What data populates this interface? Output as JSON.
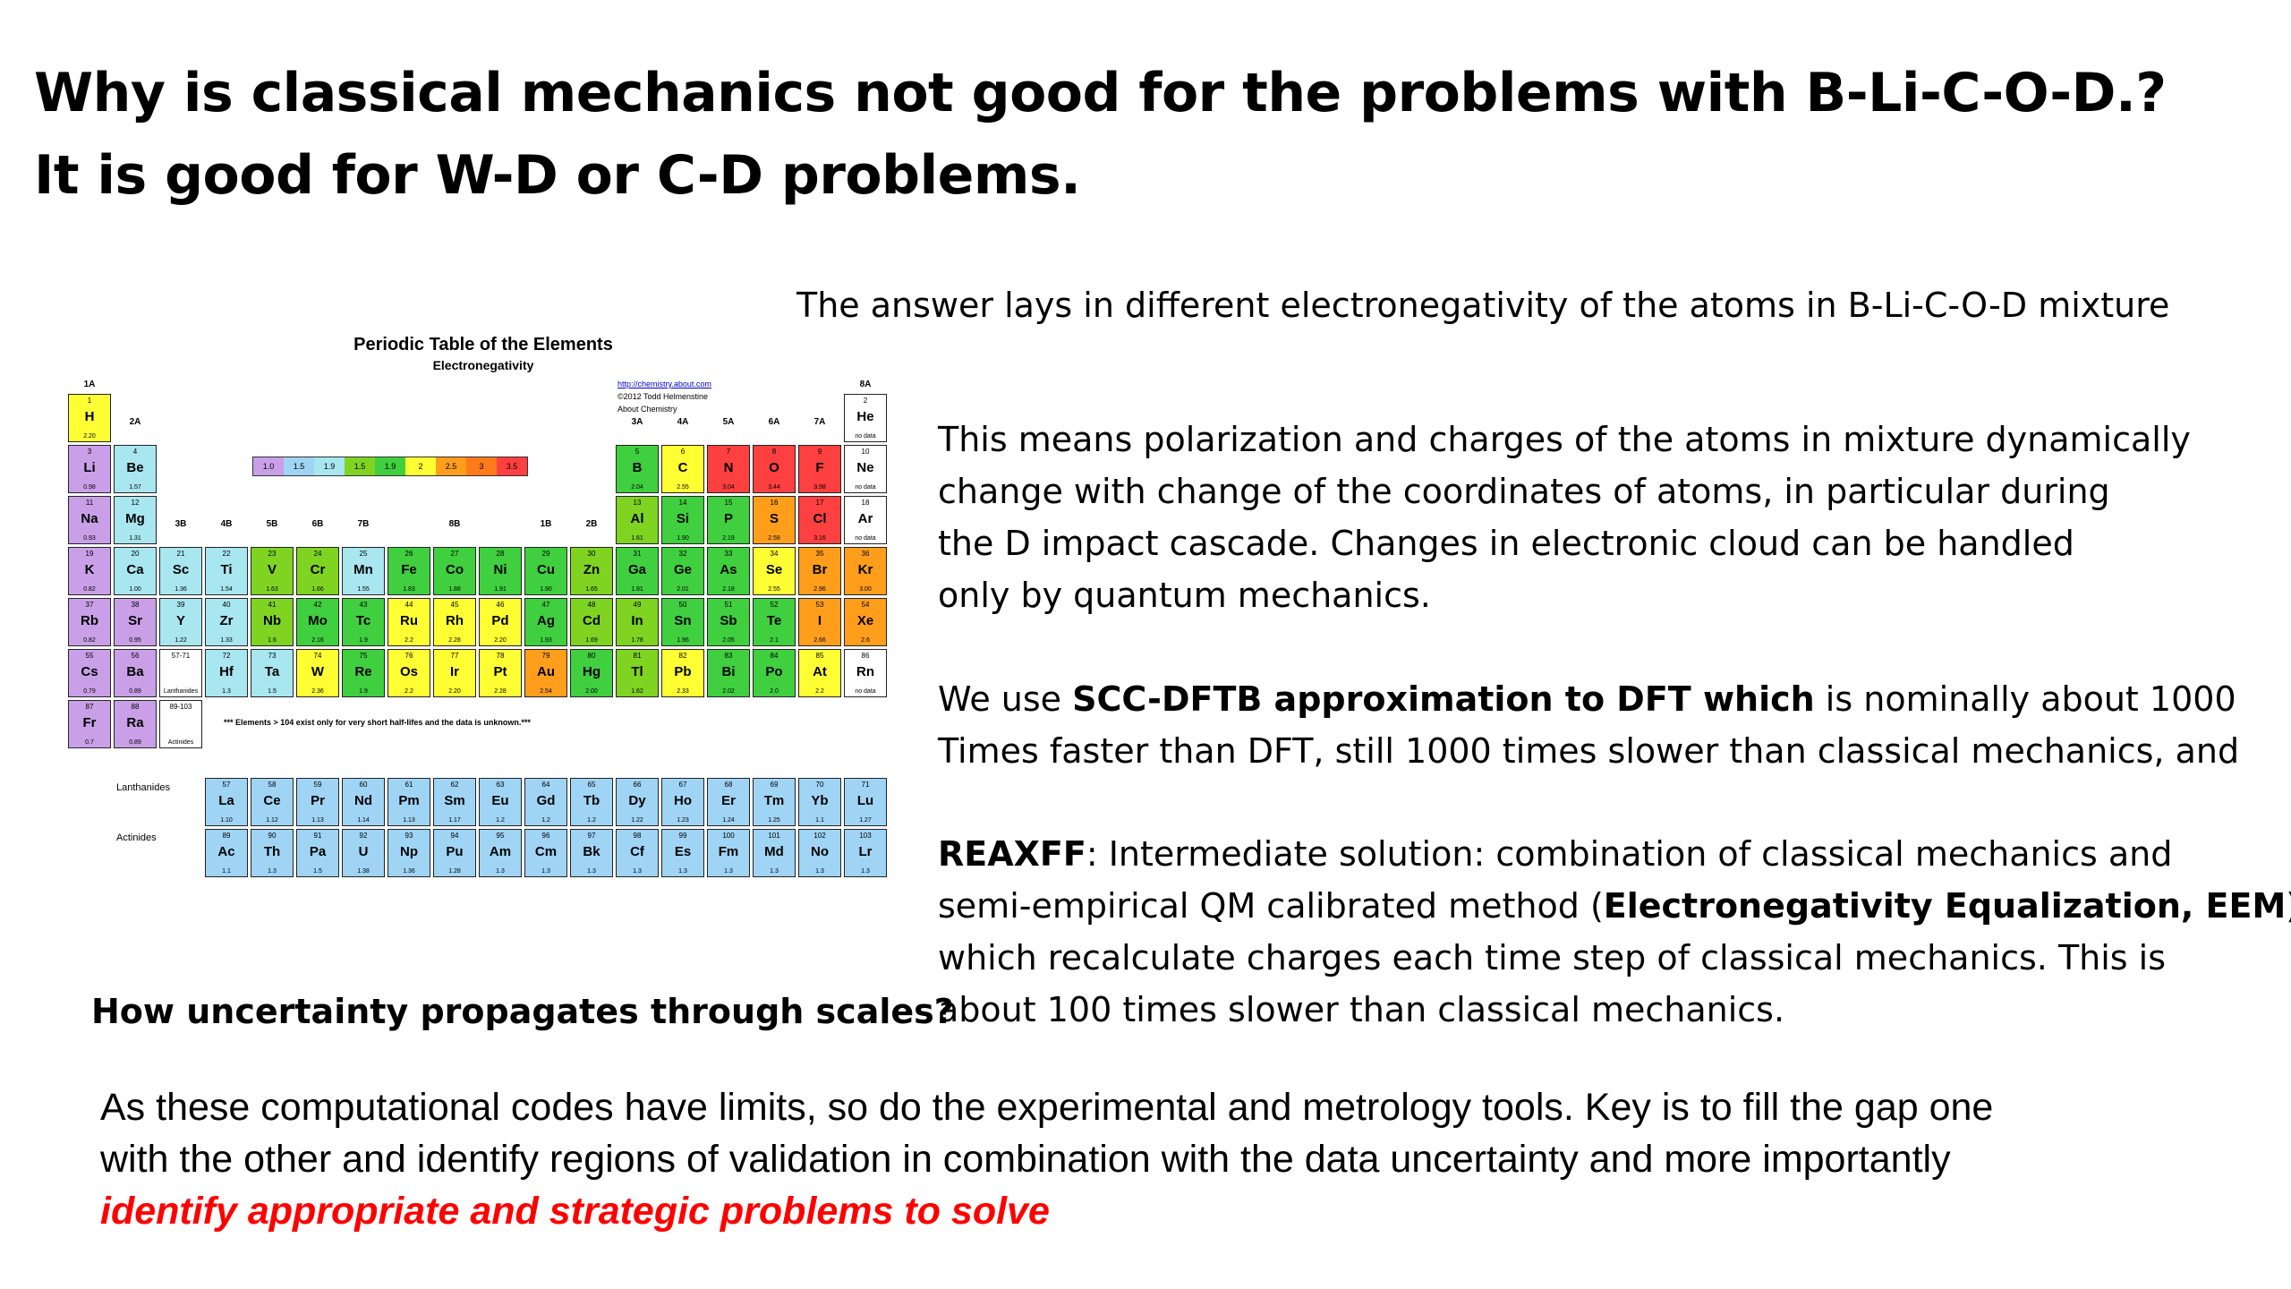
{
  "title": {
    "line1": "Why is classical mechanics not good for the problems  with B-Li-C-O-D.?",
    "line2": "It is good for W-D or C-D problems."
  },
  "answer": "The answer lays in different electronegativity of the atoms in B-Li-C-O-D mixture",
  "para1": [
    "This means polarization and charges of the atoms in mixture dynamically",
    "change  with change of the coordinates of atoms, in particular  during",
    "the D impact cascade.  Changes in electronic cloud can be handled",
    "only by quantum mechanics."
  ],
  "para2": {
    "l1_pre": "We use ",
    "l1_bold": "SCC-DFTB approximation to DFT which",
    "l1_post": " is nominally about 1000",
    "l2": "Times faster than DFT,  still 1000 times slower than classical mechanics, and"
  },
  "para3": {
    "l1_bold": "REAXFF",
    "l1_rest": ":  Intermediate solution: combination of classical mechanics  and",
    "l2_pre": "semi-empirical QM calibrated method (",
    "l2_bold": "Electronegativity Equalization, EEM",
    "l2_post": ")",
    "l3": "which recalculate charges each time step of classical mechanics. This is",
    "l4": "about  100 times slower than classical mechanics."
  },
  "uncertainty_question": "How uncertainty propagates through scales?",
  "bottom": {
    "l1": "As these computational codes have limits, so do the experimental and metrology tools. Key is to fill the gap one",
    "l2": "with the other and identify regions of validation in combination with the data uncertainty and more importantly",
    "l3_red": "identify appropriate and strategic problems to solve"
  },
  "periodic_table": {
    "title": "Periodic Table of the Elements",
    "subtitle": "Electronegativity",
    "credit": [
      "http://chemistry.about.com",
      "©2012 Todd Helmenstine",
      "About Chemistry"
    ],
    "note": "*** Elements > 104 exist only for very short half-lifes and the data is unknown.***",
    "lanthanides_label": "Lanthanides",
    "actinides_label": "Actinides",
    "group_labels": [
      "1A",
      "2A",
      "3B",
      "4B",
      "5B",
      "6B",
      "7B",
      "8B",
      "1B",
      "2B",
      "3A",
      "4A",
      "5A",
      "6A",
      "7A",
      "8A"
    ],
    "scale": [
      "1.0",
      "1.5",
      "1.9",
      "1.5",
      "1.9",
      "2",
      "2.5",
      "3",
      "3.5"
    ],
    "colors": {
      "purple": "#c9a0e8",
      "blue": "#9fd4f5",
      "cyan": "#a8e6f0",
      "lime": "#7fd321",
      "green": "#3fcf3f",
      "yellow": "#ffff33",
      "orange": "#ff9e1a",
      "red": "#ff4040",
      "white": "#ffffff",
      "ltgray": "#e8e8e8"
    },
    "elements": [
      {
        "n": "1",
        "s": "H",
        "e": "2.20",
        "r": 0,
        "c": 0,
        "col": "yellow"
      },
      {
        "n": "2",
        "s": "He",
        "e": "no data",
        "r": 0,
        "c": 17,
        "col": "white"
      },
      {
        "n": "3",
        "s": "Li",
        "e": "0.98",
        "r": 1,
        "c": 0,
        "col": "purple"
      },
      {
        "n": "4",
        "s": "Be",
        "e": "1.57",
        "r": 1,
        "c": 1,
        "col": "cyan"
      },
      {
        "n": "5",
        "s": "B",
        "e": "2.04",
        "r": 1,
        "c": 12,
        "col": "green"
      },
      {
        "n": "6",
        "s": "C",
        "e": "2.55",
        "r": 1,
        "c": 13,
        "col": "yellow"
      },
      {
        "n": "7",
        "s": "N",
        "e": "3.04",
        "r": 1,
        "c": 14,
        "col": "red"
      },
      {
        "n": "8",
        "s": "O",
        "e": "3.44",
        "r": 1,
        "c": 15,
        "col": "red"
      },
      {
        "n": "9",
        "s": "F",
        "e": "3.98",
        "r": 1,
        "c": 16,
        "col": "red"
      },
      {
        "n": "10",
        "s": "Ne",
        "e": "no data",
        "r": 1,
        "c": 17,
        "col": "white"
      },
      {
        "n": "11",
        "s": "Na",
        "e": "0.93",
        "r": 2,
        "c": 0,
        "col": "purple"
      },
      {
        "n": "12",
        "s": "Mg",
        "e": "1.31",
        "r": 2,
        "c": 1,
        "col": "cyan"
      },
      {
        "n": "13",
        "s": "Al",
        "e": "1.61",
        "r": 2,
        "c": 12,
        "col": "lime"
      },
      {
        "n": "14",
        "s": "Si",
        "e": "1.90",
        "r": 2,
        "c": 13,
        "col": "green"
      },
      {
        "n": "15",
        "s": "P",
        "e": "2.19",
        "r": 2,
        "c": 14,
        "col": "green"
      },
      {
        "n": "16",
        "s": "S",
        "e": "2.58",
        "r": 2,
        "c": 15,
        "col": "orange"
      },
      {
        "n": "17",
        "s": "Cl",
        "e": "3.16",
        "r": 2,
        "c": 16,
        "col": "red"
      },
      {
        "n": "18",
        "s": "Ar",
        "e": "no data",
        "r": 2,
        "c": 17,
        "col": "white"
      },
      {
        "n": "19",
        "s": "K",
        "e": "0.82",
        "r": 3,
        "c": 0,
        "col": "purple"
      },
      {
        "n": "20",
        "s": "Ca",
        "e": "1.00",
        "r": 3,
        "c": 1,
        "col": "cyan"
      },
      {
        "n": "21",
        "s": "Sc",
        "e": "1.36",
        "r": 3,
        "c": 2,
        "col": "cyan"
      },
      {
        "n": "22",
        "s": "Ti",
        "e": "1.54",
        "r": 3,
        "c": 3,
        "col": "cyan"
      },
      {
        "n": "23",
        "s": "V",
        "e": "1.63",
        "r": 3,
        "c": 4,
        "col": "lime"
      },
      {
        "n": "24",
        "s": "Cr",
        "e": "1.66",
        "r": 3,
        "c": 5,
        "col": "lime"
      },
      {
        "n": "25",
        "s": "Mn",
        "e": "1.55",
        "r": 3,
        "c": 6,
        "col": "cyan"
      },
      {
        "n": "26",
        "s": "Fe",
        "e": "1.83",
        "r": 3,
        "c": 7,
        "col": "green"
      },
      {
        "n": "27",
        "s": "Co",
        "e": "1.88",
        "r": 3,
        "c": 8,
        "col": "green"
      },
      {
        "n": "28",
        "s": "Ni",
        "e": "1.91",
        "r": 3,
        "c": 9,
        "col": "green"
      },
      {
        "n": "29",
        "s": "Cu",
        "e": "1.90",
        "r": 3,
        "c": 10,
        "col": "green"
      },
      {
        "n": "30",
        "s": "Zn",
        "e": "1.65",
        "r": 3,
        "c": 11,
        "col": "lime"
      },
      {
        "n": "31",
        "s": "Ga",
        "e": "1.81",
        "r": 3,
        "c": 12,
        "col": "green"
      },
      {
        "n": "32",
        "s": "Ge",
        "e": "2.01",
        "r": 3,
        "c": 13,
        "col": "green"
      },
      {
        "n": "33",
        "s": "As",
        "e": "2.18",
        "r": 3,
        "c": 14,
        "col": "green"
      },
      {
        "n": "34",
        "s": "Se",
        "e": "2.55",
        "r": 3,
        "c": 15,
        "col": "yellow"
      },
      {
        "n": "35",
        "s": "Br",
        "e": "2.96",
        "r": 3,
        "c": 16,
        "col": "orange"
      },
      {
        "n": "36",
        "s": "Kr",
        "e": "3.00",
        "r": 3,
        "c": 17,
        "col": "orange"
      },
      {
        "n": "37",
        "s": "Rb",
        "e": "0.82",
        "r": 4,
        "c": 0,
        "col": "purple"
      },
      {
        "n": "38",
        "s": "Sr",
        "e": "0.95",
        "r": 4,
        "c": 1,
        "col": "purple"
      },
      {
        "n": "39",
        "s": "Y",
        "e": "1.22",
        "r": 4,
        "c": 2,
        "col": "cyan"
      },
      {
        "n": "40",
        "s": "Zr",
        "e": "1.33",
        "r": 4,
        "c": 3,
        "col": "cyan"
      },
      {
        "n": "41",
        "s": "Nb",
        "e": "1.6",
        "r": 4,
        "c": 4,
        "col": "lime"
      },
      {
        "n": "42",
        "s": "Mo",
        "e": "2.16",
        "r": 4,
        "c": 5,
        "col": "green"
      },
      {
        "n": "43",
        "s": "Tc",
        "e": "1.9",
        "r": 4,
        "c": 6,
        "col": "green"
      },
      {
        "n": "44",
        "s": "Ru",
        "e": "2.2",
        "r": 4,
        "c": 7,
        "col": "yellow"
      },
      {
        "n": "45",
        "s": "Rh",
        "e": "2.28",
        "r": 4,
        "c": 8,
        "col": "yellow"
      },
      {
        "n": "46",
        "s": "Pd",
        "e": "2.20",
        "r": 4,
        "c": 9,
        "col": "yellow"
      },
      {
        "n": "47",
        "s": "Ag",
        "e": "1.93",
        "r": 4,
        "c": 10,
        "col": "green"
      },
      {
        "n": "48",
        "s": "Cd",
        "e": "1.69",
        "r": 4,
        "c": 11,
        "col": "lime"
      },
      {
        "n": "49",
        "s": "In",
        "e": "1.78",
        "r": 4,
        "c": 12,
        "col": "lime"
      },
      {
        "n": "50",
        "s": "Sn",
        "e": "1.96",
        "r": 4,
        "c": 13,
        "col": "green"
      },
      {
        "n": "51",
        "s": "Sb",
        "e": "2.05",
        "r": 4,
        "c": 14,
        "col": "green"
      },
      {
        "n": "52",
        "s": "Te",
        "e": "2.1",
        "r": 4,
        "c": 15,
        "col": "green"
      },
      {
        "n": "53",
        "s": "I",
        "e": "2.66",
        "r": 4,
        "c": 16,
        "col": "orange"
      },
      {
        "n": "54",
        "s": "Xe",
        "e": "2.6",
        "r": 4,
        "c": 17,
        "col": "orange"
      },
      {
        "n": "55",
        "s": "Cs",
        "e": "0.79",
        "r": 5,
        "c": 0,
        "col": "purple"
      },
      {
        "n": "56",
        "s": "Ba",
        "e": "0.89",
        "r": 5,
        "c": 1,
        "col": "purple"
      },
      {
        "n": "57-71",
        "s": "",
        "e": "Lanthanides",
        "r": 5,
        "c": 2,
        "col": "white"
      },
      {
        "n": "72",
        "s": "Hf",
        "e": "1.3",
        "r": 5,
        "c": 3,
        "col": "cyan"
      },
      {
        "n": "73",
        "s": "Ta",
        "e": "1.5",
        "r": 5,
        "c": 4,
        "col": "cyan"
      },
      {
        "n": "74",
        "s": "W",
        "e": "2.36",
        "r": 5,
        "c": 5,
        "col": "yellow"
      },
      {
        "n": "75",
        "s": "Re",
        "e": "1.9",
        "r": 5,
        "c": 6,
        "col": "green"
      },
      {
        "n": "76",
        "s": "Os",
        "e": "2.2",
        "r": 5,
        "c": 7,
        "col": "yellow"
      },
      {
        "n": "77",
        "s": "Ir",
        "e": "2.20",
        "r": 5,
        "c": 8,
        "col": "yellow"
      },
      {
        "n": "78",
        "s": "Pt",
        "e": "2.28",
        "r": 5,
        "c": 9,
        "col": "yellow"
      },
      {
        "n": "79",
        "s": "Au",
        "e": "2.54",
        "r": 5,
        "c": 10,
        "col": "orange"
      },
      {
        "n": "80",
        "s": "Hg",
        "e": "2.00",
        "r": 5,
        "c": 11,
        "col": "green"
      },
      {
        "n": "81",
        "s": "Tl",
        "e": "1.62",
        "r": 5,
        "c": 12,
        "col": "lime"
      },
      {
        "n": "82",
        "s": "Pb",
        "e": "2.33",
        "r": 5,
        "c": 13,
        "col": "yellow"
      },
      {
        "n": "83",
        "s": "Bi",
        "e": "2.02",
        "r": 5,
        "c": 14,
        "col": "green"
      },
      {
        "n": "84",
        "s": "Po",
        "e": "2.0",
        "r": 5,
        "c": 15,
        "col": "green"
      },
      {
        "n": "85",
        "s": "At",
        "e": "2.2",
        "r": 5,
        "c": 16,
        "col": "yellow"
      },
      {
        "n": "86",
        "s": "Rn",
        "e": "no data",
        "r": 5,
        "c": 17,
        "col": "white"
      },
      {
        "n": "87",
        "s": "Fr",
        "e": "0.7",
        "r": 6,
        "c": 0,
        "col": "purple"
      },
      {
        "n": "88",
        "s": "Ra",
        "e": "0.89",
        "r": 6,
        "c": 1,
        "col": "purple"
      },
      {
        "n": "89-103",
        "s": "",
        "e": "Actinides",
        "r": 6,
        "c": 2,
        "col": "white"
      }
    ],
    "lanthanides": [
      {
        "n": "57",
        "s": "La",
        "e": "1.10"
      },
      {
        "n": "58",
        "s": "Ce",
        "e": "1.12"
      },
      {
        "n": "59",
        "s": "Pr",
        "e": "1.13"
      },
      {
        "n": "60",
        "s": "Nd",
        "e": "1.14"
      },
      {
        "n": "61",
        "s": "Pm",
        "e": "1.13"
      },
      {
        "n": "62",
        "s": "Sm",
        "e": "1.17"
      },
      {
        "n": "63",
        "s": "Eu",
        "e": "1.2"
      },
      {
        "n": "64",
        "s": "Gd",
        "e": "1.2"
      },
      {
        "n": "65",
        "s": "Tb",
        "e": "1.2"
      },
      {
        "n": "66",
        "s": "Dy",
        "e": "1.22"
      },
      {
        "n": "67",
        "s": "Ho",
        "e": "1.23"
      },
      {
        "n": "68",
        "s": "Er",
        "e": "1.24"
      },
      {
        "n": "69",
        "s": "Tm",
        "e": "1.25"
      },
      {
        "n": "70",
        "s": "Yb",
        "e": "1.1"
      },
      {
        "n": "71",
        "s": "Lu",
        "e": "1.27"
      }
    ],
    "actinides": [
      {
        "n": "89",
        "s": "Ac",
        "e": "1.1"
      },
      {
        "n": "90",
        "s": "Th",
        "e": "1.3"
      },
      {
        "n": "91",
        "s": "Pa",
        "e": "1.5"
      },
      {
        "n": "92",
        "s": "U",
        "e": "1.38"
      },
      {
        "n": "93",
        "s": "Np",
        "e": "1.36"
      },
      {
        "n": "94",
        "s": "Pu",
        "e": "1.28"
      },
      {
        "n": "95",
        "s": "Am",
        "e": "1.3"
      },
      {
        "n": "96",
        "s": "Cm",
        "e": "1.3"
      },
      {
        "n": "97",
        "s": "Bk",
        "e": "1.3"
      },
      {
        "n": "98",
        "s": "Cf",
        "e": "1.3"
      },
      {
        "n": "99",
        "s": "Es",
        "e": "1.3"
      },
      {
        "n": "100",
        "s": "Fm",
        "e": "1.3"
      },
      {
        "n": "101",
        "s": "Md",
        "e": "1.3"
      },
      {
        "n": "102",
        "s": "No",
        "e": "1.3"
      },
      {
        "n": "103",
        "s": "Lr",
        "e": "1.3"
      }
    ]
  }
}
